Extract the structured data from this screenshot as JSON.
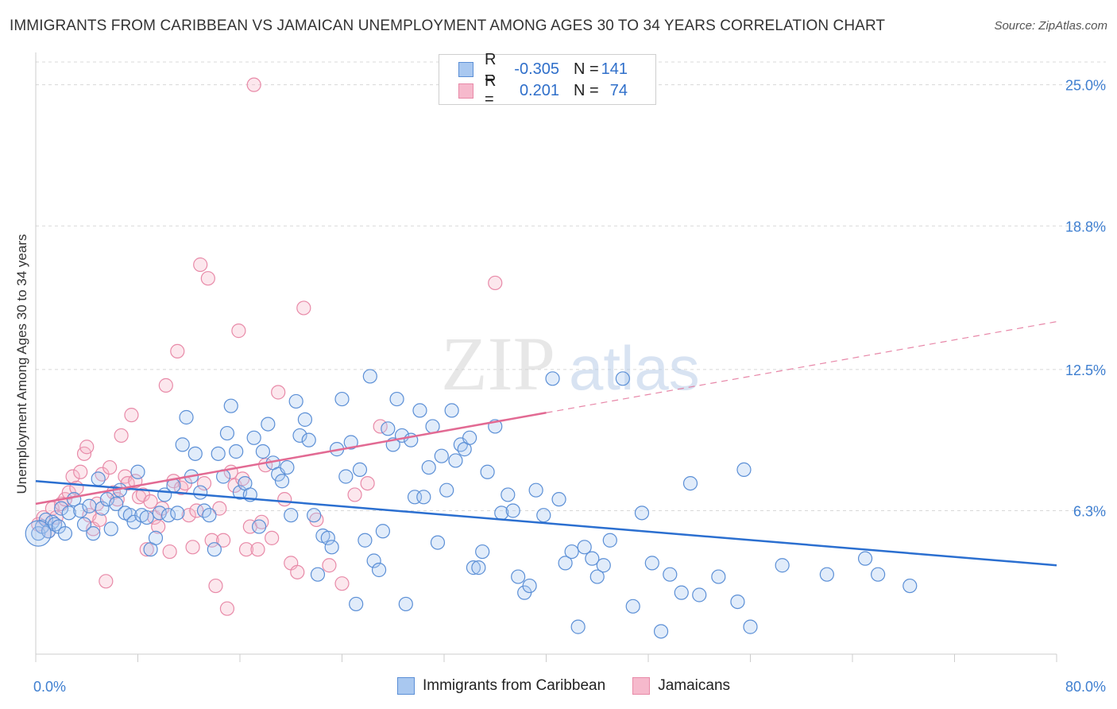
{
  "title": "IMMIGRANTS FROM CARIBBEAN VS JAMAICAN UNEMPLOYMENT AMONG AGES 30 TO 34 YEARS CORRELATION CHART",
  "source": "Source: ZipAtlas.com",
  "watermark": {
    "zip": "ZIP",
    "atlas": "atlas"
  },
  "legend": {
    "rows": [
      {
        "r_label": "R =",
        "r_value": "-0.305",
        "n_label": "N =",
        "n_value": "141"
      },
      {
        "r_label": "R =",
        "r_value": "0.201",
        "n_label": "N =",
        "n_value": "74"
      }
    ]
  },
  "bottom_legend": [
    "Immigrants from Caribbean",
    "Jamaicans"
  ],
  "colors": {
    "blue_fill": "#a9c8f0",
    "blue_stroke": "#5b8fd6",
    "blue_line": "#2b6fd0",
    "pink_fill": "#f6b9cc",
    "pink_stroke": "#e88aa8",
    "pink_line": "#e26a93",
    "axis_text": "#3f7fd0",
    "grid": "#d8d8d8"
  },
  "chart_data": {
    "type": "scatter",
    "title": "IMMIGRANTS FROM CARIBBEAN VS JAMAICAN UNEMPLOYMENT AMONG AGES 30 TO 34 YEARS CORRELATION CHART",
    "xlabel": "",
    "ylabel": "Unemployment Among Ages 30 to 34 years",
    "xlim": [
      0,
      80
    ],
    "ylim": [
      0,
      26
    ],
    "x_tick_labels": [
      "0.0%",
      "80.0%"
    ],
    "y_ticks": [
      6.3,
      12.5,
      18.8,
      25.0
    ],
    "y_tick_labels": [
      "6.3%",
      "12.5%",
      "18.8%",
      "25.0%"
    ],
    "grid": "horizontal dashed",
    "series": [
      {
        "name": "Immigrants from Caribbean",
        "R": -0.305,
        "N": 141,
        "trend": {
          "x": [
            0,
            80
          ],
          "y": [
            7.6,
            3.9
          ],
          "style": "solid"
        },
        "points": [
          [
            0.2,
            5.3
          ],
          [
            0.5,
            5.6
          ],
          [
            0.8,
            5.9
          ],
          [
            1.0,
            5.4
          ],
          [
            1.3,
            5.8
          ],
          [
            1.5,
            5.7
          ],
          [
            1.8,
            5.6
          ],
          [
            2.0,
            6.4
          ],
          [
            2.3,
            5.3
          ],
          [
            2.6,
            6.2
          ],
          [
            3.0,
            6.8
          ],
          [
            3.5,
            6.3
          ],
          [
            3.8,
            5.7
          ],
          [
            4.2,
            6.5
          ],
          [
            4.5,
            5.3
          ],
          [
            4.9,
            7.7
          ],
          [
            5.2,
            6.4
          ],
          [
            5.6,
            6.8
          ],
          [
            5.9,
            5.5
          ],
          [
            6.3,
            6.6
          ],
          [
            6.6,
            7.2
          ],
          [
            7.0,
            6.2
          ],
          [
            7.4,
            6.1
          ],
          [
            7.7,
            5.8
          ],
          [
            8.0,
            8.0
          ],
          [
            8.3,
            6.1
          ],
          [
            8.7,
            6.0
          ],
          [
            9.0,
            4.6
          ],
          [
            9.4,
            5.1
          ],
          [
            9.7,
            6.2
          ],
          [
            10.1,
            7.0
          ],
          [
            10.4,
            6.1
          ],
          [
            10.8,
            7.4
          ],
          [
            11.1,
            6.2
          ],
          [
            11.5,
            9.2
          ],
          [
            11.8,
            10.4
          ],
          [
            12.2,
            7.8
          ],
          [
            12.5,
            8.8
          ],
          [
            12.9,
            7.1
          ],
          [
            13.2,
            6.3
          ],
          [
            13.6,
            6.1
          ],
          [
            14.0,
            4.6
          ],
          [
            14.3,
            8.8
          ],
          [
            14.7,
            7.8
          ],
          [
            15.0,
            9.7
          ],
          [
            15.3,
            10.9
          ],
          [
            15.7,
            8.9
          ],
          [
            16.0,
            7.1
          ],
          [
            16.4,
            7.5
          ],
          [
            16.8,
            7.0
          ],
          [
            17.1,
            9.5
          ],
          [
            17.5,
            5.6
          ],
          [
            17.8,
            8.9
          ],
          [
            18.2,
            10.1
          ],
          [
            18.6,
            8.4
          ],
          [
            19.0,
            7.9
          ],
          [
            19.3,
            7.6
          ],
          [
            19.7,
            8.2
          ],
          [
            20.0,
            6.1
          ],
          [
            20.4,
            11.1
          ],
          [
            20.7,
            9.6
          ],
          [
            21.1,
            10.3
          ],
          [
            21.4,
            9.4
          ],
          [
            21.8,
            6.1
          ],
          [
            22.1,
            3.5
          ],
          [
            22.5,
            5.2
          ],
          [
            22.9,
            5.1
          ],
          [
            23.2,
            4.7
          ],
          [
            23.6,
            9.0
          ],
          [
            24.0,
            11.2
          ],
          [
            24.3,
            7.8
          ],
          [
            24.7,
            9.3
          ],
          [
            25.1,
            2.2
          ],
          [
            25.4,
            8.1
          ],
          [
            25.8,
            5.0
          ],
          [
            26.2,
            12.2
          ],
          [
            26.5,
            4.1
          ],
          [
            26.9,
            3.7
          ],
          [
            27.2,
            5.4
          ],
          [
            27.6,
            9.9
          ],
          [
            28.0,
            9.2
          ],
          [
            28.3,
            11.2
          ],
          [
            28.7,
            9.6
          ],
          [
            29.0,
            2.2
          ],
          [
            29.4,
            9.4
          ],
          [
            29.7,
            6.9
          ],
          [
            30.1,
            10.7
          ],
          [
            30.4,
            6.9
          ],
          [
            30.8,
            8.2
          ],
          [
            31.1,
            10.0
          ],
          [
            31.5,
            4.9
          ],
          [
            31.8,
            8.7
          ],
          [
            32.2,
            7.2
          ],
          [
            32.6,
            10.7
          ],
          [
            32.9,
            8.5
          ],
          [
            33.3,
            9.2
          ],
          [
            33.6,
            9.0
          ],
          [
            34.0,
            9.5
          ],
          [
            34.3,
            3.8
          ],
          [
            34.7,
            3.8
          ],
          [
            35.0,
            4.5
          ],
          [
            35.4,
            8.0
          ],
          [
            36.0,
            10.0
          ],
          [
            36.5,
            6.2
          ],
          [
            37.0,
            7.0
          ],
          [
            37.4,
            6.3
          ],
          [
            37.8,
            3.4
          ],
          [
            38.3,
            2.7
          ],
          [
            38.7,
            3.0
          ],
          [
            39.2,
            7.2
          ],
          [
            39.8,
            6.1
          ],
          [
            40.5,
            12.1
          ],
          [
            41.0,
            6.8
          ],
          [
            41.5,
            4.0
          ],
          [
            42.0,
            4.5
          ],
          [
            42.5,
            1.2
          ],
          [
            43.0,
            4.7
          ],
          [
            43.6,
            4.2
          ],
          [
            44.0,
            3.4
          ],
          [
            44.5,
            3.9
          ],
          [
            45.0,
            5.0
          ],
          [
            46.0,
            12.1
          ],
          [
            46.8,
            2.1
          ],
          [
            47.5,
            6.2
          ],
          [
            48.3,
            4.0
          ],
          [
            49.0,
            1.0
          ],
          [
            49.7,
            3.5
          ],
          [
            50.6,
            2.7
          ],
          [
            51.3,
            7.5
          ],
          [
            52.0,
            2.6
          ],
          [
            53.5,
            3.4
          ],
          [
            55.0,
            2.3
          ],
          [
            55.5,
            8.1
          ],
          [
            56.0,
            1.2
          ],
          [
            58.5,
            3.9
          ],
          [
            62.0,
            3.5
          ],
          [
            65.0,
            4.2
          ],
          [
            66.0,
            3.5
          ],
          [
            68.5,
            3.0
          ]
        ]
      },
      {
        "name": "Jamaicans",
        "R": 0.201,
        "N": 74,
        "trend": {
          "x": [
            0,
            40
          ],
          "y": [
            6.6,
            10.6
          ],
          "x_dashed_to": 80,
          "y_dashed_to": 14.6,
          "style": "solid then dashed"
        },
        "points": [
          [
            0.2,
            5.7
          ],
          [
            0.6,
            6.0
          ],
          [
            1.0,
            5.4
          ],
          [
            1.3,
            6.4
          ],
          [
            1.6,
            6.0
          ],
          [
            2.0,
            6.6
          ],
          [
            2.3,
            6.8
          ],
          [
            2.6,
            7.1
          ],
          [
            2.9,
            7.8
          ],
          [
            3.2,
            7.3
          ],
          [
            3.5,
            8.0
          ],
          [
            3.8,
            8.8
          ],
          [
            4.0,
            9.1
          ],
          [
            4.2,
            6.1
          ],
          [
            4.5,
            5.5
          ],
          [
            4.8,
            6.6
          ],
          [
            5.0,
            5.9
          ],
          [
            5.2,
            7.9
          ],
          [
            5.5,
            3.2
          ],
          [
            5.8,
            8.2
          ],
          [
            6.1,
            7.1
          ],
          [
            6.4,
            6.8
          ],
          [
            6.7,
            9.6
          ],
          [
            7.0,
            7.8
          ],
          [
            7.2,
            7.5
          ],
          [
            7.5,
            10.5
          ],
          [
            7.8,
            7.6
          ],
          [
            8.1,
            6.9
          ],
          [
            8.4,
            7.0
          ],
          [
            8.7,
            4.6
          ],
          [
            9.0,
            6.7
          ],
          [
            9.3,
            6.0
          ],
          [
            9.6,
            5.6
          ],
          [
            9.9,
            6.4
          ],
          [
            10.2,
            11.8
          ],
          [
            10.5,
            4.5
          ],
          [
            10.8,
            7.6
          ],
          [
            11.1,
            13.3
          ],
          [
            11.4,
            7.3
          ],
          [
            11.7,
            7.5
          ],
          [
            12.0,
            6.1
          ],
          [
            12.3,
            4.7
          ],
          [
            12.6,
            6.3
          ],
          [
            12.9,
            17.1
          ],
          [
            13.2,
            7.5
          ],
          [
            13.5,
            16.5
          ],
          [
            13.8,
            5.0
          ],
          [
            14.1,
            3.0
          ],
          [
            14.4,
            6.4
          ],
          [
            14.7,
            5.0
          ],
          [
            15.0,
            2.0
          ],
          [
            15.3,
            8.0
          ],
          [
            15.6,
            7.4
          ],
          [
            15.9,
            14.2
          ],
          [
            16.2,
            7.7
          ],
          [
            16.5,
            4.6
          ],
          [
            16.8,
            5.6
          ],
          [
            17.1,
            25.0
          ],
          [
            17.4,
            4.6
          ],
          [
            17.7,
            5.8
          ],
          [
            18.0,
            8.3
          ],
          [
            18.5,
            5.1
          ],
          [
            19.0,
            11.5
          ],
          [
            19.5,
            6.8
          ],
          [
            20.0,
            4.0
          ],
          [
            20.5,
            3.6
          ],
          [
            21.0,
            15.2
          ],
          [
            22.0,
            5.9
          ],
          [
            23.0,
            3.9
          ],
          [
            24.0,
            3.1
          ],
          [
            25.0,
            7.0
          ],
          [
            26.0,
            7.5
          ],
          [
            27.0,
            10.0
          ],
          [
            36.0,
            16.3
          ]
        ]
      }
    ]
  }
}
